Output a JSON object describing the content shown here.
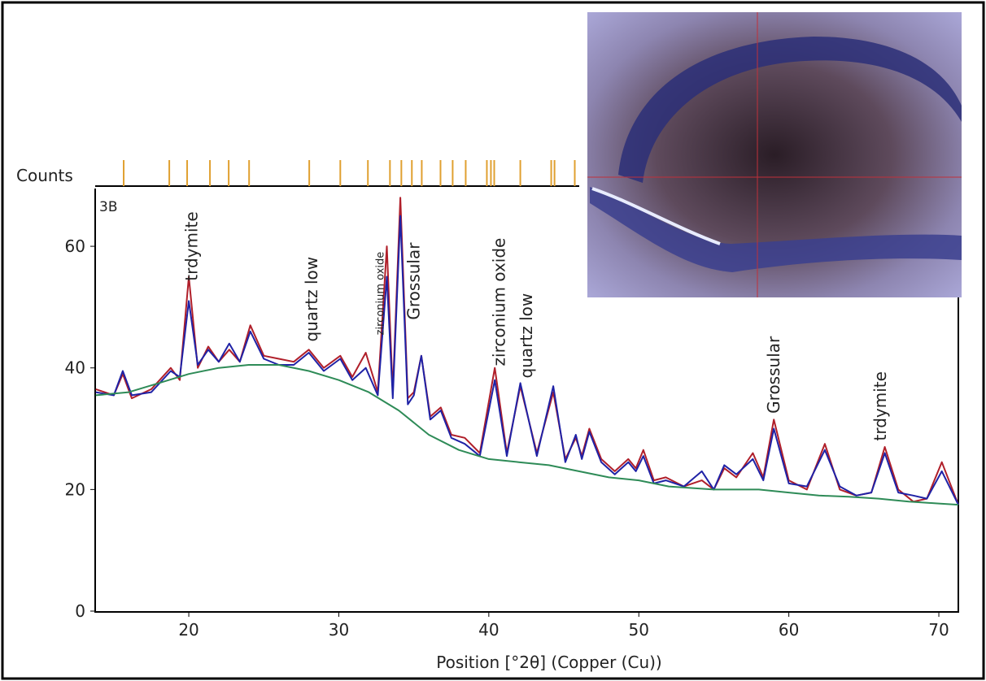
{
  "chart_data": {
    "type": "line",
    "strip_label": "Counts",
    "panel_label": "3B",
    "xlabel": "Position [°2θ] (Copper (Cu))",
    "xlim": [
      13.76,
      71.3
    ],
    "ylim": [
      0,
      69.5
    ],
    "xticks": [
      20,
      30,
      40,
      50,
      60,
      70
    ],
    "yticks": [
      0,
      20,
      40,
      60
    ],
    "x": [
      13.8,
      15.0,
      15.6,
      16.2,
      17.5,
      18.8,
      19.4,
      20.0,
      20.6,
      21.3,
      22.0,
      22.7,
      23.4,
      24.1,
      25.0,
      26.0,
      27.0,
      28.0,
      29.0,
      30.1,
      30.9,
      31.8,
      32.6,
      33.2,
      33.6,
      34.1,
      34.6,
      35.0,
      35.5,
      36.1,
      36.8,
      37.5,
      38.4,
      39.4,
      40.4,
      41.2,
      42.1,
      43.2,
      44.3,
      45.1,
      45.8,
      46.2,
      46.7,
      47.5,
      48.4,
      49.3,
      49.8,
      50.3,
      51.0,
      51.8,
      53.0,
      54.2,
      55.0,
      55.7,
      56.5,
      57.6,
      58.3,
      59.0,
      60.0,
      61.2,
      62.4,
      63.4,
      64.5,
      65.5,
      66.4,
      67.3,
      68.3,
      69.2,
      70.2,
      71.3
    ],
    "series": [
      {
        "color": "#b01f2a",
        "values": [
          36.5,
          35.5,
          39,
          35,
          36.5,
          40,
          38,
          55,
          40,
          43.5,
          41,
          43,
          41,
          47,
          42,
          41.5,
          41,
          43,
          40,
          42,
          38.5,
          42.5,
          36,
          60,
          36,
          68,
          35,
          36,
          42,
          32,
          33.5,
          29,
          28.5,
          26,
          40,
          26,
          37,
          26,
          36,
          25,
          28.5,
          25.5,
          30,
          25,
          23,
          25,
          23.5,
          26.5,
          21.5,
          22,
          20.5,
          21.5,
          20,
          23.5,
          22,
          26,
          22,
          31.5,
          21.5,
          20,
          27.5,
          20,
          19,
          19.5,
          27,
          20,
          18,
          18.5,
          24.5,
          17.5
        ]
      },
      {
        "color": "#1f22a6",
        "values": [
          36,
          35.5,
          39.5,
          35.5,
          36,
          39.5,
          38.5,
          51,
          40.5,
          43,
          41,
          44,
          41,
          46,
          41.5,
          40.5,
          40.5,
          42.5,
          39.5,
          41.5,
          38,
          40,
          35.5,
          55,
          35,
          65,
          34,
          35.5,
          42,
          31.5,
          33,
          28.5,
          27.5,
          25.5,
          38,
          25.5,
          37.5,
          25.5,
          37,
          24.5,
          29,
          25,
          29.5,
          24.5,
          22.5,
          24.5,
          23,
          25.5,
          21,
          21.5,
          20.5,
          23,
          20,
          24,
          22.5,
          25,
          21.5,
          30,
          21,
          20.5,
          26.5,
          20.5,
          19,
          19.5,
          26,
          19.5,
          19,
          18.5,
          23,
          17.5
        ]
      },
      {
        "color": "#2e8b57",
        "x": [
          13.8,
          16,
          18,
          20,
          22,
          24,
          26,
          28,
          30,
          32,
          34,
          36,
          38,
          40,
          42,
          44,
          46,
          48,
          50,
          52,
          55,
          58,
          60,
          62,
          64,
          66,
          68,
          70,
          71.3
        ],
        "values": [
          35.5,
          36,
          37.5,
          39,
          40,
          40.5,
          40.5,
          39.5,
          38,
          36,
          33,
          29,
          26.5,
          25,
          24.5,
          24,
          23,
          22,
          21.5,
          20.5,
          20,
          20,
          19.5,
          19,
          18.8,
          18.5,
          18,
          17.7,
          17.5
        ]
      }
    ],
    "reference_color": "#e0a030",
    "reference_peaks": [
      15.66,
      18.7,
      19.89,
      21.41,
      22.66,
      24.02,
      28.03,
      30.1,
      31.94,
      33.41,
      34.17,
      34.87,
      35.53,
      36.78,
      37.59,
      38.46,
      39.87,
      40.14,
      40.36,
      42.1,
      44.16,
      44.38,
      45.73
    ],
    "annotations": [
      {
        "text": "trdymite",
        "x": 20.2,
        "y": 54.3
      },
      {
        "text": "quartz low",
        "x": 28.2,
        "y": 44.3
      },
      {
        "text": "zirconium oxide",
        "x": 32.6,
        "y": 45.4,
        "small": true
      },
      {
        "text": "Grossular",
        "x": 35.0,
        "y": 47.9
      },
      {
        "text": "zirconium oxide",
        "x": 40.7,
        "y": 40.3
      },
      {
        "text": "quartz low",
        "x": 42.5,
        "y": 38.3
      },
      {
        "text": "Grossular",
        "x": 59.0,
        "y": 32.5
      },
      {
        "text": "trdymite",
        "x": 66.1,
        "y": 28
      }
    ]
  }
}
